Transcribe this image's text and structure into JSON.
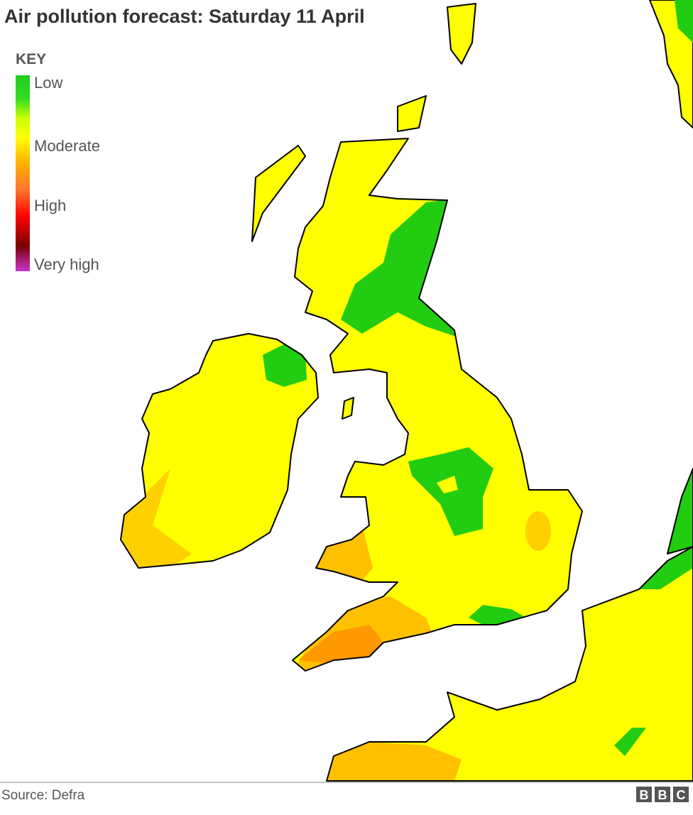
{
  "title": "Air pollution forecast: Saturday 11 April",
  "key": {
    "title": "KEY",
    "levels": [
      "Low",
      "Moderate",
      "High",
      "Very high"
    ]
  },
  "source": "Source: Defra",
  "logo": [
    "B",
    "B",
    "C"
  ]
}
